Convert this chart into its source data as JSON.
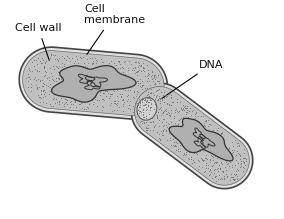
{
  "background_color": "#ffffff",
  "cell_fill": "#c8c8c8",
  "cell_edge": "#444444",
  "cell_wall_gap_fill": "#e0e0e0",
  "cell_inner_edge": "#555555",
  "dna_edge": "#333333",
  "labels": {
    "cell_wall": "Cell wall",
    "cell_membrane": "Cell\nmembrane",
    "dna": "DNA"
  },
  "label_fontsize": 8,
  "fig_width": 2.84,
  "fig_height": 2.19,
  "dpi": 100
}
